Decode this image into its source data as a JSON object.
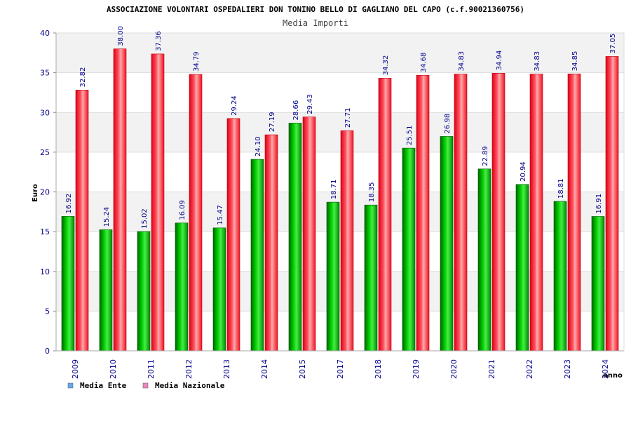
{
  "chart_data": {
    "type": "bar",
    "title": "ASSOCIAZIONE VOLONTARI OSPEDALIERI DON TONINO BELLO DI GAGLIANO DEL CAPO (c.f.90021360756)",
    "subtitle": "Media Importi",
    "xlabel": "anno",
    "ylabel": "Euro",
    "ylim": [
      0,
      40
    ],
    "yticks": [
      0,
      5,
      10,
      15,
      20,
      25,
      30,
      35,
      40
    ],
    "grid": true,
    "legend_position": "bottom-left",
    "categories": [
      "2009",
      "2010",
      "2011",
      "2012",
      "2013",
      "2014",
      "2015",
      "2017",
      "2018",
      "2019",
      "2020",
      "2021",
      "2022",
      "2023",
      "2024"
    ],
    "series": [
      {
        "name": "Media Ente",
        "values": [
          16.92,
          15.24,
          15.02,
          16.09,
          15.47,
          24.1,
          28.66,
          18.71,
          18.35,
          25.51,
          26.98,
          22.89,
          20.94,
          18.81,
          16.91
        ],
        "labels": [
          "16.92",
          "15.24",
          "15.02",
          "16.09",
          "15.47",
          "24.10",
          "28.66",
          "18.71",
          "18.35",
          "25.51",
          "26.98",
          "22.89",
          "20.94",
          "18.81",
          "16.91"
        ],
        "color": "#00aa00",
        "legend_color": "#66aaee"
      },
      {
        "name": "Media Nazionale",
        "values": [
          32.82,
          38.0,
          37.36,
          34.79,
          29.24,
          27.19,
          29.43,
          27.71,
          34.32,
          34.68,
          34.83,
          34.94,
          34.83,
          34.85,
          37.05
        ],
        "labels": [
          "32.82",
          "38.00",
          "37.36",
          "34.79",
          "29.24",
          "27.19",
          "29.43",
          "27.71",
          "34.32",
          "34.68",
          "34.83",
          "34.94",
          "34.83",
          "34.85",
          "37.05"
        ],
        "color": "#ee1122",
        "legend_color": "#ee88bb"
      }
    ]
  }
}
